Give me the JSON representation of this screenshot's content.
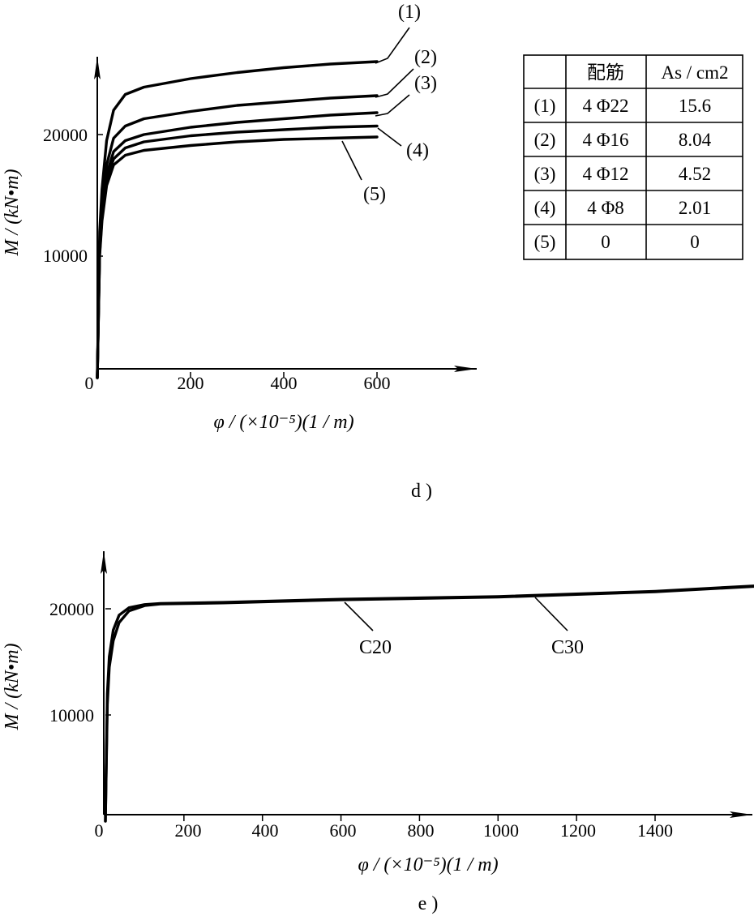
{
  "chart_data": [
    {
      "type": "line",
      "caption": "d )",
      "ylabel": "M / (kN•m)",
      "xlabel": "φ / (×10⁻⁵)(1 / m)",
      "xlim": [
        0,
        750
      ],
      "ylim": [
        0,
        26500
      ],
      "xticks": [
        "0",
        "200",
        "400",
        "600"
      ],
      "yticks": [
        "10000",
        "20000"
      ],
      "series": [
        {
          "name": "(1)",
          "x": [
            0,
            5,
            10,
            20,
            35,
            60,
            100,
            200,
            300,
            400,
            500,
            600
          ],
          "y": [
            0,
            12000,
            15500,
            19500,
            22000,
            23300,
            23900,
            24600,
            25100,
            25500,
            25800,
            26000
          ]
        },
        {
          "name": "(2)",
          "x": [
            0,
            5,
            10,
            20,
            35,
            60,
            100,
            200,
            300,
            400,
            500,
            600
          ],
          "y": [
            0,
            11000,
            14200,
            17500,
            19700,
            20700,
            21300,
            21900,
            22400,
            22700,
            23000,
            23200
          ]
        },
        {
          "name": "(3)",
          "x": [
            0,
            5,
            10,
            20,
            35,
            60,
            100,
            200,
            300,
            400,
            500,
            600
          ],
          "y": [
            0,
            10500,
            13600,
            16700,
            18600,
            19500,
            20000,
            20600,
            21000,
            21300,
            21600,
            21800
          ]
        },
        {
          "name": "(4)",
          "x": [
            0,
            5,
            10,
            20,
            35,
            60,
            100,
            200,
            300,
            400,
            500,
            600
          ],
          "y": [
            0,
            10200,
            13200,
            16200,
            18000,
            18900,
            19400,
            19900,
            20200,
            20400,
            20600,
            20700
          ]
        },
        {
          "name": "(5)",
          "x": [
            0,
            5,
            10,
            20,
            35,
            60,
            100,
            200,
            300,
            400,
            500,
            600
          ],
          "y": [
            0,
            10000,
            12900,
            15800,
            17500,
            18300,
            18700,
            19100,
            19400,
            19600,
            19700,
            19800
          ]
        }
      ],
      "table": {
        "header": [
          "",
          "配筋",
          "As / cm2"
        ],
        "rows": [
          [
            "(1)",
            "4 Φ22",
            "15.6"
          ],
          [
            "(2)",
            "4 Φ16",
            "8.04"
          ],
          [
            "(3)",
            "4 Φ12",
            "4.52"
          ],
          [
            "(4)",
            "4 Φ8",
            "2.01"
          ],
          [
            "(5)",
            "0",
            "0"
          ]
        ]
      }
    },
    {
      "type": "line",
      "caption": "e )",
      "ylabel": "M / (kN•m)",
      "xlabel": "φ / (×10⁻⁵)(1 / m)",
      "xlim": [
        0,
        1700
      ],
      "ylim": [
        0,
        25000
      ],
      "xticks": [
        "0",
        "200",
        "400",
        "600",
        "800",
        "1000",
        "1200",
        "1400"
      ],
      "yticks": [
        "10000",
        "20000"
      ],
      "series": [
        {
          "name": "C20",
          "x": [
            0,
            5,
            10,
            20,
            35,
            60,
            100,
            140,
            300,
            600,
            1000,
            1400,
            1700
          ],
          "y": [
            0,
            11000,
            14500,
            17000,
            18700,
            19800,
            20300,
            20450,
            20550,
            20850,
            21100,
            21600,
            22200
          ]
        },
        {
          "name": "C30",
          "x": [
            0,
            5,
            10,
            20,
            35,
            60,
            100,
            140,
            300,
            600,
            1000,
            1400,
            1700
          ],
          "y": [
            0,
            12000,
            15500,
            18000,
            19400,
            20100,
            20400,
            20500,
            20600,
            20900,
            21150,
            21650,
            22250
          ]
        }
      ]
    }
  ]
}
